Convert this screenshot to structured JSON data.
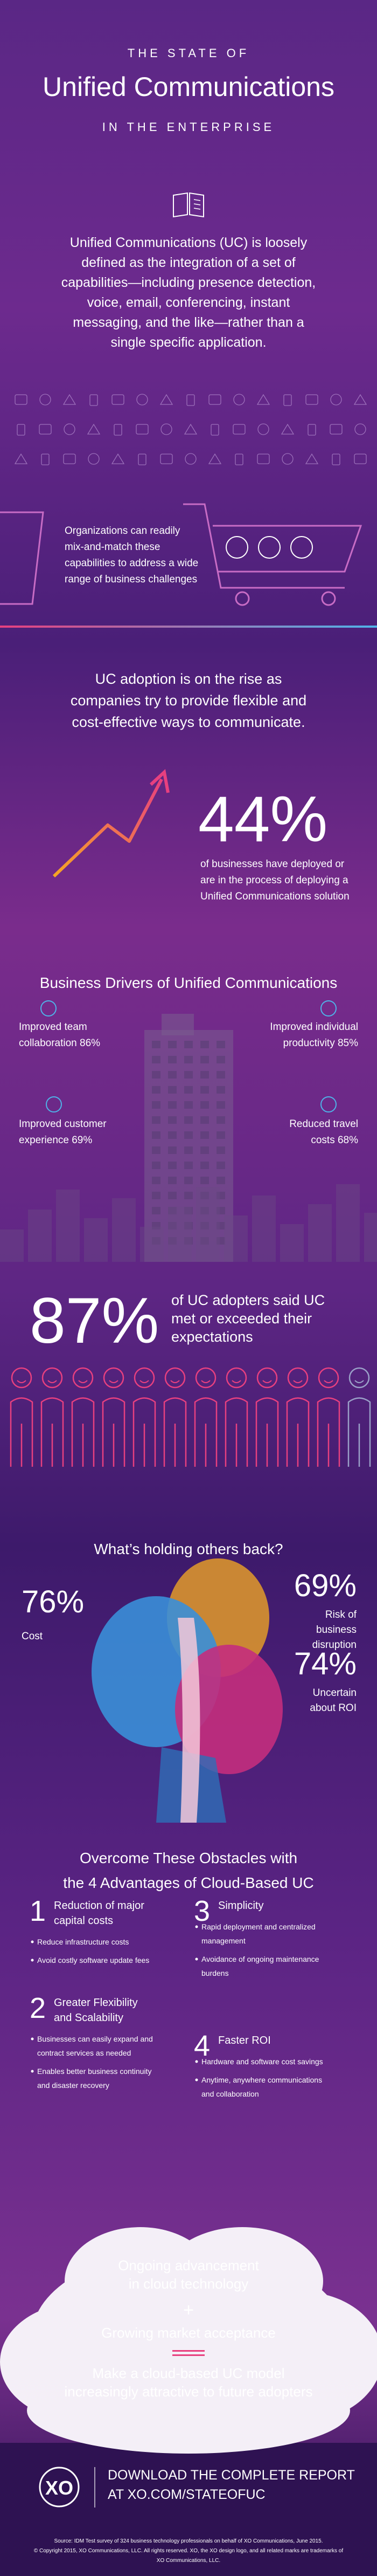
{
  "header": {
    "kicker": "THE STATE OF",
    "title": "Unified Communications",
    "subtitle": "IN THE ENTERPRISE"
  },
  "intro": {
    "lines": [
      "Unified Communications (UC) is loosely",
      "defined as the integration of a set of",
      "capabilities—including presence detection,",
      "voice, email, conferencing, instant",
      "messaging, and the like—rather than a",
      "single specific application."
    ]
  },
  "capabilities": {
    "lines": [
      "Organizations can readily",
      "mix-and-match these",
      "capabilities to address a wide",
      "range of business challenges"
    ]
  },
  "adoption": {
    "lines": [
      "UC adoption is on the rise as",
      "companies try to provide flexible and",
      "cost-effective ways to communicate."
    ],
    "stat": "44%",
    "stat_lines": [
      "of businesses have deployed or",
      "are in the process of deploying a",
      "Unified Communications solution"
    ]
  },
  "drivers": {
    "title": "Business Drivers of Unified Communications",
    "items": [
      {
        "lines": [
          "Improved team",
          "collaboration 86%"
        ]
      },
      {
        "lines": [
          "Improved individual",
          "productivity 85%"
        ]
      },
      {
        "lines": [
          "Improved customer",
          "experience 69%"
        ]
      },
      {
        "lines": [
          "Reduced travel",
          "costs 68%"
        ]
      }
    ]
  },
  "satisfaction": {
    "stat": "87%",
    "lines": [
      "of UC adopters said UC",
      "met or exceeded their",
      "expectations"
    ]
  },
  "obstacles": {
    "title": "What’s holding others back?",
    "items": [
      {
        "stat": "76%",
        "lines": [
          "Cost"
        ]
      },
      {
        "stat": "69%",
        "lines": [
          "Risk of",
          "business",
          "disruption"
        ]
      },
      {
        "stat": "74%",
        "lines": [
          "Uncertain",
          "about ROI"
        ]
      }
    ]
  },
  "advantages": {
    "title_lines": [
      "Overcome These Obstacles with",
      "the 4 Advantages of Cloud-Based UC"
    ],
    "items": [
      {
        "number": "1",
        "title_lines": [
          "Reduction of major",
          "capital costs"
        ],
        "bullets": [
          [
            "Reduce infrastructure costs"
          ],
          [
            "Avoid costly software update fees"
          ]
        ]
      },
      {
        "number": "2",
        "title_lines": [
          "Greater Flexibility",
          "and Scalability"
        ],
        "bullets": [
          [
            "Businesses can easily expand and",
            "contract services as needed"
          ],
          [
            "Enables better business continuity",
            "and disaster recovery"
          ]
        ]
      },
      {
        "number": "3",
        "title_lines": [
          "Simplicity"
        ],
        "bullets": [
          [
            "Rapid deployment and centralized",
            "management"
          ],
          [
            "Avoidance of ongoing maintenance",
            "burdens"
          ]
        ]
      },
      {
        "number": "4",
        "title_lines": [
          "Faster ROI"
        ],
        "bullets": [
          [
            "Hardware and software cost savings"
          ],
          [
            "Anytime, anywhere communications",
            "and collaboration"
          ]
        ]
      }
    ]
  },
  "equation": {
    "first_lines": [
      "Ongoing advancement",
      "in cloud technology"
    ],
    "plus": "+",
    "second_lines": [
      "Growing market acceptance"
    ],
    "result_lines": [
      "Make a cloud-based UC model",
      "increasingly attractive to future adopters"
    ]
  },
  "footer": {
    "logo": "XO",
    "cta_lines": [
      "DOWNLOAD THE COMPLETE REPORT",
      "AT XO.COM/STATEOFUC"
    ],
    "source_lines": [
      "Source: IDM Test survey of 324 business technology professionals on behalf of XO Communications, June 2015.",
      "© Copyright 2015, XO Communications, LLC. All rights reserved. XO, the XO design logo, and all related marks are trademarks of",
      "XO Communications, LLC."
    ]
  }
}
